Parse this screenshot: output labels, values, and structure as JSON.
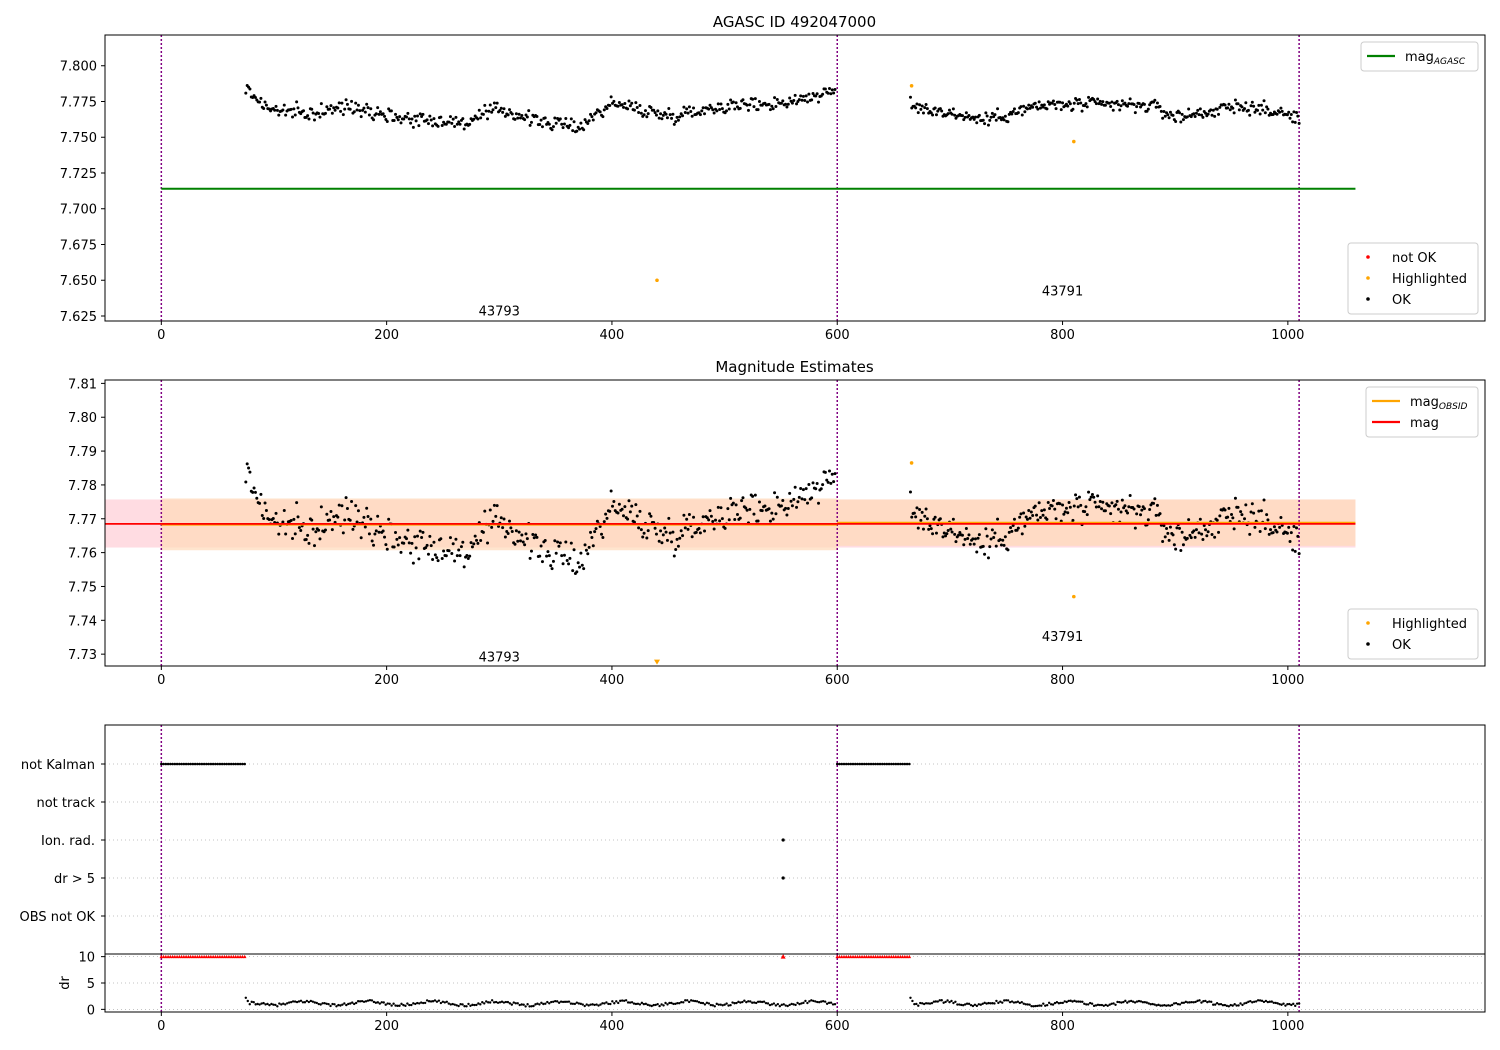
{
  "figure": {
    "background": "#ffffff",
    "colors": {
      "ok": "#000000",
      "highlighted": "#ffa500",
      "not_ok": "#ff0000",
      "mag_agasc": "#008000",
      "mag_obsid": "#ffa500",
      "mag": "#ff0000",
      "obsid_band": "#ffdab9",
      "mag_band": "#ffc0cb",
      "obsid_line": "#800080",
      "grid": "#b0b0b0"
    }
  },
  "chart_data": [
    {
      "id": "top",
      "type": "scatter",
      "title": "AGASC ID 492047000",
      "xlim": [
        -50,
        1175
      ],
      "ylim": [
        7.6215,
        7.8215
      ],
      "xticks": [
        0,
        200,
        400,
        600,
        800,
        1000
      ],
      "yticks": [
        7.625,
        7.65,
        7.675,
        7.7,
        7.725,
        7.75,
        7.775,
        7.8
      ],
      "ytick_labels": [
        "7.625",
        "7.650",
        "7.675",
        "7.700",
        "7.725",
        "7.750",
        "7.775",
        "7.800"
      ],
      "obsid_boundaries": [
        0,
        600,
        1010
      ],
      "obsid_labels": [
        {
          "text": "43793",
          "x": 300,
          "y": 7.628
        },
        {
          "text": "43791",
          "x": 800,
          "y": 7.642
        }
      ],
      "mag_agasc": {
        "value": 7.714,
        "x": [
          0,
          1060
        ]
      },
      "ok_points": {
        "segments": [
          {
            "x0": 75,
            "x1": 598,
            "n": 430,
            "trend": [
              [
                75,
                7.784
              ],
              [
                95,
                7.77
              ],
              [
                130,
                7.766
              ],
              [
                170,
                7.772
              ],
              [
                210,
                7.764
              ],
              [
                270,
                7.76
              ],
              [
                300,
                7.77
              ],
              [
                330,
                7.762
              ],
              [
                370,
                7.757
              ],
              [
                400,
                7.774
              ],
              [
                450,
                7.765
              ],
              [
                500,
                7.772
              ],
              [
                550,
                7.774
              ],
              [
                598,
                7.782
              ]
            ],
            "noise": 0.0045
          },
          {
            "x0": 665,
            "x1": 1010,
            "n": 300,
            "trend": [
              [
                665,
                7.772
              ],
              [
                700,
                7.767
              ],
              [
                730,
                7.762
              ],
              [
                780,
                7.772
              ],
              [
                820,
                7.773
              ],
              [
                880,
                7.772
              ],
              [
                900,
                7.764
              ],
              [
                960,
                7.772
              ],
              [
                1010,
                7.764
              ]
            ],
            "noise": 0.0045
          }
        ]
      },
      "highlighted_points": [
        [
          440,
          7.65
        ],
        [
          810,
          7.747
        ],
        [
          666,
          7.786
        ]
      ],
      "legends": [
        {
          "position": "upper-right",
          "entries": [
            {
              "label": "mag",
              "sub": "AGASC",
              "color": "#008000",
              "kind": "line"
            }
          ]
        },
        {
          "position": "lower-right",
          "entries": [
            {
              "label": "not OK",
              "color": "#ff0000",
              "kind": "dot"
            },
            {
              "label": "Highlighted",
              "color": "#ffa500",
              "kind": "dot"
            },
            {
              "label": "OK",
              "color": "#000000",
              "kind": "dot"
            }
          ]
        }
      ]
    },
    {
      "id": "mid",
      "type": "scatter",
      "title": "Magnitude Estimates",
      "xlim": [
        -50,
        1175
      ],
      "ylim": [
        7.7265,
        7.811
      ],
      "xticks": [
        0,
        200,
        400,
        600,
        800,
        1000
      ],
      "yticks": [
        7.73,
        7.74,
        7.75,
        7.76,
        7.77,
        7.78,
        7.79,
        7.8,
        7.81
      ],
      "ytick_labels": [
        "7.73",
        "7.74",
        "7.75",
        "7.76",
        "7.77",
        "7.78",
        "7.79",
        "7.80",
        "7.81"
      ],
      "obsid_boundaries": [
        0,
        600,
        1010
      ],
      "obsid_labels": [
        {
          "text": "43793",
          "x": 300,
          "y": 7.729
        },
        {
          "text": "43791",
          "x": 800,
          "y": 7.735
        }
      ],
      "mag": {
        "value": 7.7685,
        "band": [
          7.7615,
          7.7757
        ],
        "x": [
          -50,
          1060
        ]
      },
      "mag_obsid": [
        {
          "x": [
            0,
            600
          ],
          "value": 7.7683,
          "band": [
            7.7607,
            7.776
          ]
        },
        {
          "x": [
            600,
            1060
          ],
          "value": 7.7688,
          "band": [
            7.762,
            7.7757
          ]
        }
      ],
      "ok_points": {
        "segments": [
          {
            "x0": 75,
            "x1": 598,
            "n": 430,
            "trend": [
              [
                75,
                7.784
              ],
              [
                95,
                7.77
              ],
              [
                130,
                7.766
              ],
              [
                170,
                7.772
              ],
              [
                210,
                7.764
              ],
              [
                270,
                7.76
              ],
              [
                300,
                7.77
              ],
              [
                330,
                7.762
              ],
              [
                370,
                7.757
              ],
              [
                400,
                7.774
              ],
              [
                450,
                7.765
              ],
              [
                500,
                7.772
              ],
              [
                550,
                7.774
              ],
              [
                598,
                7.782
              ]
            ],
            "noise": 0.0045
          },
          {
            "x0": 665,
            "x1": 1010,
            "n": 300,
            "trend": [
              [
                665,
                7.772
              ],
              [
                700,
                7.767
              ],
              [
                730,
                7.762
              ],
              [
                780,
                7.772
              ],
              [
                820,
                7.773
              ],
              [
                880,
                7.772
              ],
              [
                900,
                7.764
              ],
              [
                960,
                7.772
              ],
              [
                1010,
                7.764
              ]
            ],
            "noise": 0.0045
          }
        ]
      },
      "highlighted_points": [
        [
          810,
          7.747
        ],
        [
          666,
          7.7865
        ]
      ],
      "highlighted_markers": [
        {
          "x": 440,
          "y": 7.7275,
          "marker": "triangle-down"
        }
      ],
      "legends": [
        {
          "position": "upper-right",
          "entries": [
            {
              "label": "mag",
              "sub": "OBSID",
              "color": "#ffa500",
              "kind": "line"
            },
            {
              "label": "mag",
              "sub": "",
              "color": "#ff0000",
              "kind": "line"
            }
          ]
        },
        {
          "position": "lower-right",
          "entries": [
            {
              "label": "Highlighted",
              "color": "#ffa500",
              "kind": "dot"
            },
            {
              "label": "OK",
              "color": "#000000",
              "kind": "dot"
            }
          ]
        }
      ]
    },
    {
      "id": "flags",
      "type": "scatter",
      "xlim": [
        -50,
        1175
      ],
      "xticks": [
        0,
        200,
        400,
        600,
        800,
        1000
      ],
      "obsid_boundaries": [
        0,
        600,
        1010
      ],
      "rows": [
        "not Kalman",
        "not track",
        "Ion. rad.",
        "dr > 5",
        "OBS not OK"
      ],
      "flag_ranges": [
        {
          "row": "not Kalman",
          "x": [
            0,
            75
          ]
        },
        {
          "row": "not Kalman",
          "x": [
            600,
            665
          ]
        }
      ],
      "flag_points": [
        {
          "row": "Ion. rad.",
          "x": 552
        },
        {
          "row": "dr > 5",
          "x": 552
        }
      ]
    },
    {
      "id": "dr",
      "type": "scatter",
      "ylabel": "dr",
      "xlim": [
        -50,
        1175
      ],
      "ylim": [
        -0.5,
        10.5
      ],
      "xticks": [
        0,
        200,
        400,
        600,
        800,
        1000
      ],
      "xtick_labels": [
        "0",
        "200",
        "400",
        "600",
        "800",
        "1000"
      ],
      "yticks": [
        0,
        5,
        10
      ],
      "ytick_labels": [
        "0",
        "5",
        "10"
      ],
      "obsid_boundaries": [
        0,
        600,
        1010
      ],
      "clipped_ranges": [
        {
          "x": [
            0,
            75
          ],
          "y": 10
        },
        {
          "x": [
            600,
            665
          ],
          "y": 10
        }
      ],
      "clipped_points": [
        {
          "x": 552,
          "y": 10
        }
      ],
      "dr_segments": [
        {
          "x0": 75,
          "x1": 598,
          "n": 300
        },
        {
          "x0": 665,
          "x1": 1010,
          "n": 200
        }
      ]
    }
  ]
}
